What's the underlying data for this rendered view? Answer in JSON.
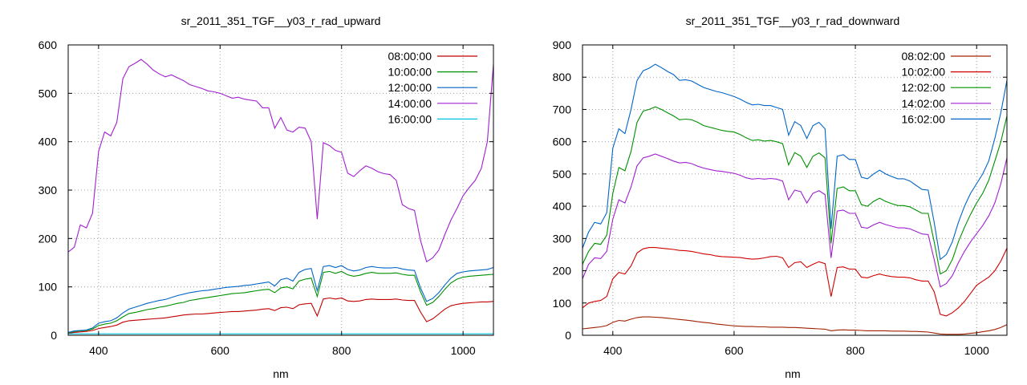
{
  "chart_data": [
    {
      "type": "line",
      "title": "sr_2011_351_TGF__y03_r_rad_upward",
      "xlabel": "nm",
      "ylabel": "",
      "xlim": [
        350,
        1050
      ],
      "ylim": [
        0,
        600
      ],
      "xticks": [
        400,
        600,
        800,
        1000
      ],
      "yticks": [
        0,
        100,
        200,
        300,
        400,
        500,
        600
      ],
      "grid": true,
      "legend": "top-right",
      "x": [
        350,
        360,
        370,
        380,
        390,
        400,
        410,
        420,
        430,
        440,
        450,
        460,
        470,
        480,
        490,
        500,
        510,
        520,
        530,
        540,
        550,
        560,
        570,
        580,
        590,
        600,
        610,
        620,
        630,
        640,
        650,
        660,
        670,
        680,
        690,
        700,
        710,
        720,
        730,
        740,
        750,
        760,
        770,
        780,
        790,
        800,
        810,
        820,
        830,
        840,
        850,
        860,
        870,
        880,
        890,
        900,
        910,
        920,
        930,
        940,
        950,
        960,
        970,
        980,
        990,
        1000,
        1010,
        1020,
        1030,
        1040,
        1050
      ],
      "series": [
        {
          "name": "08:00:00",
          "color": "#c00000",
          "values": [
            4,
            6,
            7,
            8,
            10,
            14,
            16,
            18,
            21,
            27,
            30,
            31,
            32,
            33,
            34,
            35,
            36,
            38,
            40,
            42,
            43,
            44,
            44,
            45,
            46,
            47,
            48,
            49,
            49,
            50,
            51,
            52,
            54,
            55,
            51,
            57,
            58,
            55,
            63,
            65,
            66,
            40,
            75,
            77,
            75,
            77,
            71,
            70,
            71,
            74,
            75,
            74,
            74,
            74,
            75,
            73,
            72,
            72,
            48,
            28,
            34,
            44,
            54,
            61,
            64,
            66,
            67,
            68,
            69,
            69,
            70
          ]
        },
        {
          "name": "10:00:00",
          "color": "#009000",
          "values": [
            5,
            8,
            9,
            10,
            13,
            20,
            23,
            25,
            30,
            38,
            45,
            47,
            50,
            53,
            55,
            58,
            60,
            63,
            66,
            68,
            72,
            74,
            76,
            78,
            80,
            82,
            84,
            86,
            87,
            88,
            90,
            92,
            94,
            95,
            88,
            98,
            100,
            96,
            112,
            116,
            118,
            80,
            130,
            132,
            128,
            132,
            125,
            122,
            124,
            128,
            130,
            128,
            128,
            128,
            129,
            126,
            124,
            124,
            90,
            62,
            68,
            80,
            95,
            108,
            116,
            120,
            122,
            123,
            124,
            125,
            126
          ]
        },
        {
          "name": "12:00:00",
          "color": "#0064c8",
          "values": [
            6,
            9,
            10,
            11,
            15,
            25,
            28,
            30,
            36,
            46,
            54,
            58,
            62,
            66,
            69,
            72,
            74,
            78,
            82,
            85,
            88,
            90,
            92,
            93,
            95,
            97,
            99,
            100,
            101,
            103,
            104,
            106,
            108,
            110,
            102,
            115,
            118,
            112,
            130,
            136,
            138,
            92,
            142,
            144,
            140,
            144,
            136,
            133,
            135,
            140,
            142,
            140,
            139,
            139,
            140,
            137,
            135,
            134,
            98,
            70,
            76,
            88,
            104,
            118,
            128,
            131,
            133,
            134,
            135,
            136,
            140
          ]
        },
        {
          "name": "14:00:00",
          "color": "#a020d0",
          "values": [
            172,
            182,
            228,
            222,
            252,
            380,
            420,
            412,
            440,
            530,
            555,
            562,
            570,
            560,
            548,
            540,
            534,
            538,
            532,
            526,
            518,
            514,
            510,
            505,
            503,
            500,
            495,
            490,
            492,
            488,
            486,
            484,
            470,
            470,
            428,
            450,
            424,
            420,
            430,
            428,
            400,
            240,
            398,
            392,
            382,
            378,
            335,
            328,
            340,
            350,
            345,
            338,
            334,
            332,
            320,
            270,
            262,
            258,
            196,
            152,
            160,
            176,
            208,
            238,
            262,
            288,
            305,
            320,
            345,
            400,
            560
          ]
        },
        {
          "name": "16:00:00",
          "color": "#00c0e0",
          "values": [
            3,
            3,
            3,
            3,
            3,
            3,
            3,
            3,
            3,
            3,
            3,
            3,
            3,
            3,
            3,
            3,
            3,
            3,
            3,
            3,
            3,
            3,
            3,
            3,
            3,
            3,
            3,
            3,
            3,
            3,
            3,
            3,
            3,
            3,
            3,
            3,
            3,
            3,
            3,
            3,
            3,
            3,
            3,
            3,
            3,
            3,
            3,
            3,
            3,
            3,
            3,
            3,
            3,
            3,
            3,
            3,
            3,
            3,
            3,
            3,
            3,
            3,
            3,
            3,
            3,
            3,
            3,
            3,
            3,
            3,
            3
          ]
        }
      ]
    },
    {
      "type": "line",
      "title": "sr_2011_351_TGF__y03_r_rad_downward",
      "xlabel": "nm",
      "ylabel": "",
      "xlim": [
        350,
        1050
      ],
      "ylim": [
        0,
        900
      ],
      "xticks": [
        400,
        600,
        800,
        1000
      ],
      "yticks": [
        0,
        100,
        200,
        300,
        400,
        500,
        600,
        700,
        800,
        900
      ],
      "grid": true,
      "legend": "top-right",
      "x": [
        350,
        360,
        370,
        380,
        390,
        400,
        410,
        420,
        430,
        440,
        450,
        460,
        470,
        480,
        490,
        500,
        510,
        520,
        530,
        540,
        550,
        560,
        570,
        580,
        590,
        600,
        610,
        620,
        630,
        640,
        650,
        660,
        670,
        680,
        690,
        700,
        710,
        720,
        730,
        740,
        750,
        760,
        770,
        780,
        790,
        800,
        810,
        820,
        830,
        840,
        850,
        860,
        870,
        880,
        890,
        900,
        910,
        920,
        930,
        940,
        950,
        960,
        970,
        980,
        990,
        1000,
        1010,
        1020,
        1030,
        1040,
        1050
      ],
      "series": [
        {
          "name": "08:02:00",
          "color": "#a02000",
          "values": [
            20,
            22,
            24,
            26,
            30,
            40,
            46,
            44,
            50,
            55,
            57,
            57,
            56,
            55,
            53,
            51,
            49,
            47,
            45,
            42,
            40,
            38,
            35,
            33,
            31,
            29,
            28,
            27,
            27,
            26,
            26,
            25,
            25,
            25,
            24,
            24,
            23,
            22,
            21,
            20,
            19,
            14,
            16,
            17,
            16,
            16,
            15,
            14,
            14,
            14,
            14,
            13,
            13,
            13,
            12,
            12,
            11,
            10,
            7,
            4,
            3,
            3,
            3,
            4,
            6,
            8,
            11,
            14,
            18,
            24,
            33
          ]
        },
        {
          "name": "10:02:00",
          "color": "#d00000",
          "values": [
            85,
            100,
            105,
            108,
            120,
            175,
            195,
            190,
            215,
            255,
            268,
            272,
            272,
            270,
            268,
            266,
            263,
            262,
            260,
            256,
            252,
            250,
            246,
            244,
            243,
            242,
            241,
            238,
            236,
            237,
            240,
            244,
            245,
            240,
            210,
            225,
            228,
            210,
            220,
            228,
            222,
            120,
            210,
            212,
            205,
            205,
            180,
            178,
            185,
            190,
            185,
            182,
            180,
            180,
            178,
            172,
            168,
            168,
            135,
            65,
            60,
            70,
            85,
            105,
            130,
            155,
            168,
            180,
            200,
            230,
            270
          ]
        },
        {
          "name": "12:02:00",
          "color": "#009000",
          "values": [
            220,
            260,
            285,
            282,
            310,
            440,
            520,
            510,
            570,
            660,
            695,
            700,
            708,
            700,
            690,
            680,
            668,
            670,
            668,
            660,
            650,
            645,
            640,
            635,
            632,
            630,
            622,
            612,
            604,
            606,
            602,
            604,
            600,
            594,
            528,
            566,
            555,
            520,
            555,
            565,
            550,
            285,
            455,
            460,
            448,
            448,
            405,
            400,
            415,
            425,
            415,
            408,
            402,
            402,
            398,
            388,
            378,
            378,
            290,
            190,
            200,
            235,
            290,
            335,
            375,
            410,
            440,
            480,
            540,
            600,
            680
          ]
        },
        {
          "name": "14:02:00",
          "color": "#a020d0",
          "values": [
            175,
            220,
            240,
            238,
            260,
            360,
            420,
            410,
            460,
            525,
            550,
            555,
            562,
            555,
            548,
            540,
            534,
            536,
            532,
            524,
            518,
            514,
            510,
            508,
            505,
            502,
            496,
            488,
            484,
            486,
            484,
            486,
            484,
            478,
            420,
            450,
            445,
            410,
            440,
            448,
            436,
            240,
            385,
            388,
            378,
            378,
            335,
            332,
            342,
            350,
            343,
            338,
            333,
            333,
            330,
            322,
            314,
            312,
            235,
            150,
            160,
            185,
            225,
            260,
            290,
            315,
            340,
            370,
            410,
            470,
            550
          ]
        },
        {
          "name": "16:02:00",
          "color": "#0064c8",
          "values": [
            270,
            320,
            350,
            345,
            380,
            580,
            640,
            625,
            700,
            790,
            820,
            828,
            840,
            830,
            818,
            808,
            790,
            792,
            788,
            778,
            768,
            762,
            756,
            752,
            746,
            740,
            732,
            722,
            714,
            716,
            712,
            712,
            706,
            700,
            620,
            662,
            650,
            610,
            650,
            660,
            640,
            330,
            555,
            560,
            545,
            545,
            490,
            485,
            500,
            512,
            500,
            492,
            485,
            485,
            478,
            465,
            452,
            450,
            350,
            235,
            250,
            290,
            350,
            400,
            440,
            470,
            500,
            540,
            610,
            690,
            790
          ]
        }
      ]
    }
  ]
}
